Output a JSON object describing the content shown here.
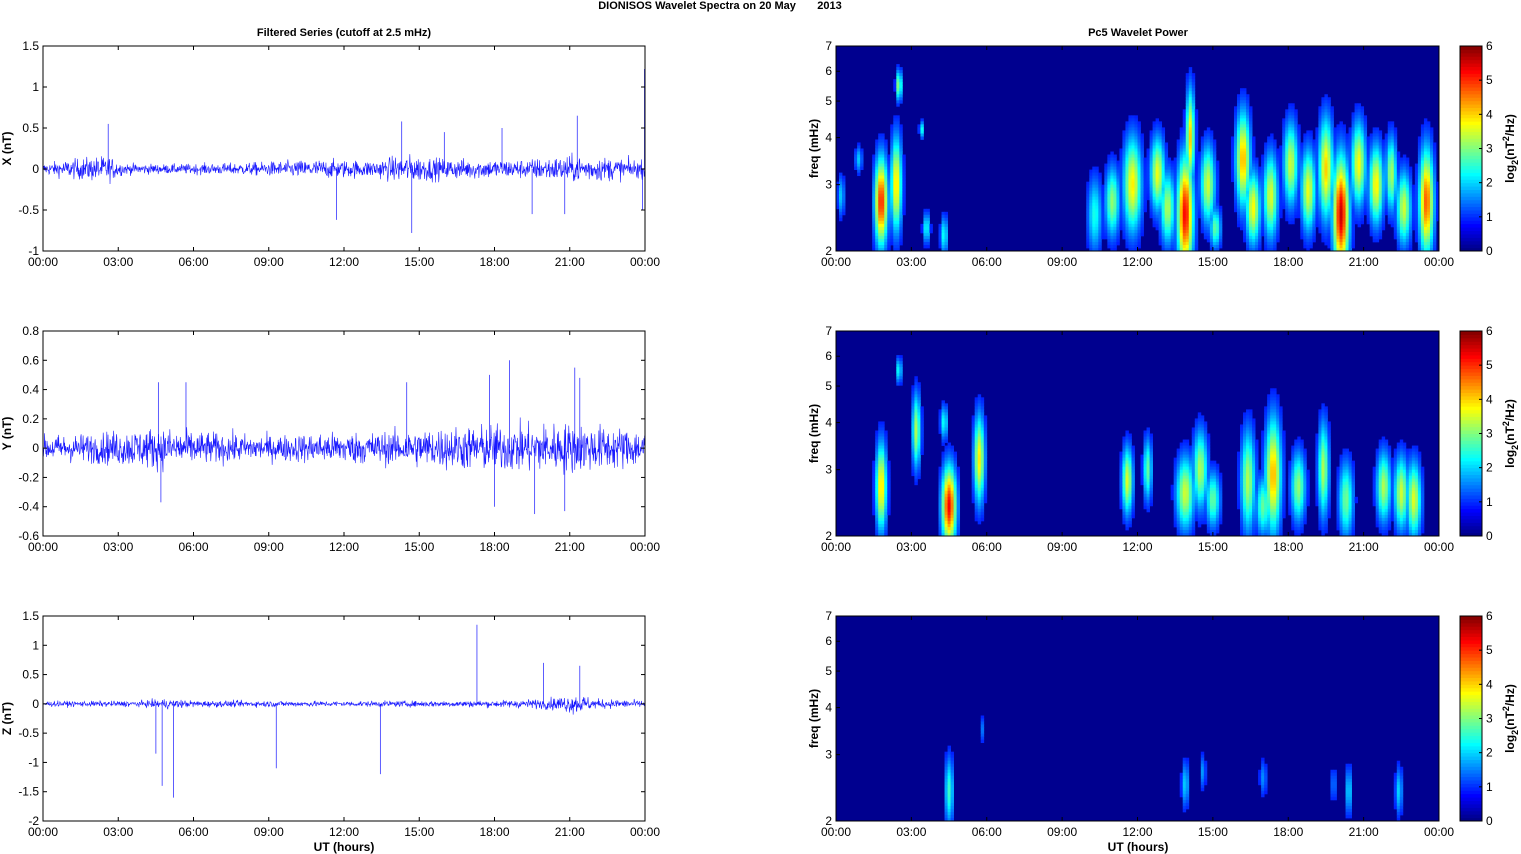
{
  "figure": {
    "title": "DIONISOS Wavelet Spectra on 20 May       2013",
    "left_title": "Filtered Series (cutoff at 2.5 mHz)",
    "right_title": "Pc5 Wavelet Power",
    "xlabel": "UT (hours)"
  },
  "colors": {
    "trace": "#0000ff",
    "spectrum_bg": "#00008f",
    "axis": "#000000"
  },
  "chart_data": [
    {
      "type": "line",
      "panel": "x-series",
      "ylabel": "X (nT)",
      "xlim": [
        0,
        24
      ],
      "ylim": [
        -1,
        1.5
      ],
      "xticks": [
        "00:00",
        "03:00",
        "06:00",
        "09:00",
        "12:00",
        "15:00",
        "18:00",
        "21:00",
        "00:00"
      ],
      "yticks": [
        "-1",
        "-0.5",
        "0",
        "0.5",
        "1",
        "1.5"
      ],
      "ytick_values": [
        -1,
        -0.5,
        0,
        0.5,
        1,
        1.5
      ],
      "series": [
        {
          "base_amplitude_envelope": [
            [
              0,
              0.12
            ],
            [
              1.8,
              0.25
            ],
            [
              2.6,
              0.28
            ],
            [
              3.2,
              0.12
            ],
            [
              5,
              0.1
            ],
            [
              8,
              0.13
            ],
            [
              11,
              0.2
            ],
            [
              13,
              0.18
            ],
            [
              14.5,
              0.3
            ],
            [
              16,
              0.22
            ],
            [
              19,
              0.2
            ],
            [
              21,
              0.28
            ],
            [
              22.5,
              0.25
            ],
            [
              24,
              0.18
            ]
          ],
          "spikes": [
            [
              2.6,
              0.55
            ],
            [
              11.7,
              -0.62
            ],
            [
              14.3,
              0.58
            ],
            [
              14.7,
              -0.78
            ],
            [
              16,
              0.45
            ],
            [
              18.3,
              0.5
            ],
            [
              19.5,
              -0.55
            ],
            [
              20.8,
              -0.55
            ],
            [
              21.3,
              0.65
            ],
            [
              23.9,
              -0.5
            ],
            [
              23.98,
              1.22
            ]
          ]
        }
      ]
    },
    {
      "type": "line",
      "panel": "y-series",
      "ylabel": "Y (nT)",
      "xlim": [
        0,
        24
      ],
      "ylim": [
        -0.6,
        0.8
      ],
      "xticks": [
        "00:00",
        "03:00",
        "06:00",
        "09:00",
        "12:00",
        "15:00",
        "18:00",
        "21:00",
        "00:00"
      ],
      "yticks": [
        "-0.6",
        "-0.4",
        "-0.2",
        "0",
        "0.2",
        "0.4",
        "0.6",
        "0.8"
      ],
      "ytick_values": [
        -0.6,
        -0.4,
        -0.2,
        0,
        0.2,
        0.4,
        0.6,
        0.8
      ],
      "series": [
        {
          "base_amplitude_envelope": [
            [
              0,
              0.15
            ],
            [
              2,
              0.18
            ],
            [
              4.5,
              0.25
            ],
            [
              6,
              0.2
            ],
            [
              9,
              0.15
            ],
            [
              11,
              0.18
            ],
            [
              14,
              0.2
            ],
            [
              16,
              0.25
            ],
            [
              18,
              0.28
            ],
            [
              21,
              0.3
            ],
            [
              24,
              0.22
            ]
          ],
          "spikes": [
            [
              4.6,
              0.45
            ],
            [
              5.7,
              0.45
            ],
            [
              4.7,
              -0.37
            ],
            [
              14.5,
              0.45
            ],
            [
              17.8,
              0.5
            ],
            [
              18.6,
              0.6
            ],
            [
              18,
              -0.4
            ],
            [
              19.6,
              -0.45
            ],
            [
              21.2,
              0.55
            ],
            [
              20.8,
              -0.43
            ],
            [
              21.4,
              0.48
            ]
          ]
        }
      ]
    },
    {
      "type": "line",
      "panel": "z-series",
      "ylabel": "Z (nT)",
      "xlim": [
        0,
        24
      ],
      "ylim": [
        -2,
        1.5
      ],
      "xticks": [
        "00:00",
        "03:00",
        "06:00",
        "09:00",
        "12:00",
        "15:00",
        "18:00",
        "21:00",
        "00:00"
      ],
      "yticks": [
        "-2",
        "-1.5",
        "-1",
        "-0.5",
        "0",
        "0.5",
        "1",
        "1.5"
      ],
      "ytick_values": [
        -2,
        -1.5,
        -1,
        -0.5,
        0,
        0.5,
        1,
        1.5
      ],
      "series": [
        {
          "base_amplitude_envelope": [
            [
              0,
              0.08
            ],
            [
              4,
              0.09
            ],
            [
              4.8,
              0.15
            ],
            [
              6,
              0.1
            ],
            [
              12,
              0.08
            ],
            [
              18,
              0.1
            ],
            [
              20,
              0.15
            ],
            [
              21.3,
              0.3
            ],
            [
              22,
              0.15
            ],
            [
              24,
              0.1
            ]
          ],
          "spikes": [
            [
              4.5,
              -0.85
            ],
            [
              4.75,
              -1.4
            ],
            [
              5.2,
              -1.6
            ],
            [
              9.3,
              -1.1
            ],
            [
              13.45,
              -1.2
            ],
            [
              17.3,
              1.35
            ],
            [
              19.95,
              0.7
            ],
            [
              21.4,
              0.65
            ]
          ]
        }
      ]
    },
    {
      "type": "heatmap",
      "panel": "x-spectrum",
      "ylabel": "freq (mHz)",
      "xlim": [
        0,
        24
      ],
      "ylim": [
        2,
        7
      ],
      "yscale": "log",
      "xticks": [
        "00:00",
        "03:00",
        "06:00",
        "09:00",
        "12:00",
        "15:00",
        "18:00",
        "21:00",
        "00:00"
      ],
      "yticks": [
        "2",
        "3",
        "4",
        "5",
        "6",
        "7"
      ],
      "ytick_values": [
        2,
        3,
        4,
        5,
        6,
        7
      ],
      "colorbar": {
        "label": "log2(nT2/Hz)",
        "range": [
          0,
          6
        ],
        "ticks": [
          "0",
          "1",
          "2",
          "3",
          "4",
          "5",
          "6"
        ]
      },
      "blobs": [
        [
          0.2,
          2.8,
          0.1,
          0.25,
          1.5
        ],
        [
          0.9,
          3.5,
          0.1,
          0.2,
          1.5
        ],
        [
          1.8,
          2.7,
          0.18,
          0.5,
          5
        ],
        [
          2.4,
          3.0,
          0.15,
          0.6,
          3.8
        ],
        [
          2.5,
          5.5,
          0.08,
          0.35,
          3
        ],
        [
          3.4,
          4.2,
          0.06,
          0.15,
          2
        ],
        [
          3.6,
          2.3,
          0.1,
          0.15,
          2
        ],
        [
          4.3,
          2.2,
          0.1,
          0.18,
          2
        ],
        [
          10.3,
          2.5,
          0.2,
          0.4,
          2
        ],
        [
          11,
          2.7,
          0.2,
          0.4,
          2.8
        ],
        [
          11.8,
          3.0,
          0.25,
          0.6,
          3.6
        ],
        [
          12.8,
          3.2,
          0.2,
          0.5,
          3.4
        ],
        [
          13.2,
          2.6,
          0.2,
          0.4,
          3
        ],
        [
          13.9,
          2.5,
          0.22,
          0.6,
          5.2
        ],
        [
          14.1,
          4.0,
          0.12,
          0.8,
          3.8
        ],
        [
          14.8,
          3.0,
          0.2,
          0.5,
          3.2
        ],
        [
          15.1,
          2.3,
          0.15,
          0.2,
          2.5
        ],
        [
          16.2,
          3.5,
          0.2,
          0.7,
          4
        ],
        [
          16.6,
          2.6,
          0.2,
          0.4,
          3.5
        ],
        [
          17.3,
          2.8,
          0.2,
          0.5,
          3.3
        ],
        [
          18.1,
          3.4,
          0.2,
          0.6,
          3.2
        ],
        [
          18.8,
          2.9,
          0.2,
          0.5,
          3.4
        ],
        [
          19.5,
          3.3,
          0.2,
          0.7,
          3.8
        ],
        [
          20.1,
          2.5,
          0.22,
          0.6,
          5.5
        ],
        [
          20.8,
          3.4,
          0.2,
          0.6,
          3.5
        ],
        [
          21.5,
          3.0,
          0.2,
          0.5,
          3.6
        ],
        [
          22.1,
          3.2,
          0.15,
          0.5,
          3
        ],
        [
          22.6,
          2.6,
          0.2,
          0.4,
          3.2
        ],
        [
          23.5,
          2.7,
          0.2,
          0.6,
          4.6
        ]
      ]
    },
    {
      "type": "heatmap",
      "panel": "y-spectrum",
      "ylabel": "freq (mHz)",
      "xlim": [
        0,
        24
      ],
      "ylim": [
        2,
        7
      ],
      "yscale": "log",
      "xticks": [
        "00:00",
        "03:00",
        "06:00",
        "09:00",
        "12:00",
        "15:00",
        "18:00",
        "21:00",
        "00:00"
      ],
      "yticks": [
        "2",
        "3",
        "4",
        "5",
        "6",
        "7"
      ],
      "ytick_values": [
        2,
        3,
        4,
        5,
        6,
        7
      ],
      "colorbar": {
        "label": "log2(nT2/Hz)",
        "range": [
          0,
          6
        ],
        "ticks": [
          "0",
          "1",
          "2",
          "3",
          "4",
          "5",
          "6"
        ]
      },
      "blobs": [
        [
          1.8,
          2.7,
          0.15,
          0.5,
          3.8
        ],
        [
          2.5,
          5.5,
          0.08,
          0.3,
          2
        ],
        [
          3.2,
          3.8,
          0.12,
          0.6,
          3
        ],
        [
          4.3,
          4.0,
          0.1,
          0.3,
          2
        ],
        [
          4.5,
          2.4,
          0.2,
          0.4,
          5.2
        ],
        [
          5.7,
          3.2,
          0.15,
          0.6,
          3.6
        ],
        [
          11.6,
          2.8,
          0.15,
          0.4,
          3.3
        ],
        [
          12.4,
          3.0,
          0.12,
          0.4,
          2.5
        ],
        [
          13.9,
          2.6,
          0.25,
          0.4,
          3.2
        ],
        [
          14.5,
          3.0,
          0.2,
          0.5,
          3
        ],
        [
          15.0,
          2.5,
          0.2,
          0.3,
          2.5
        ],
        [
          16.4,
          2.8,
          0.2,
          0.6,
          3
        ],
        [
          17.0,
          2.4,
          0.2,
          0.3,
          2.5
        ],
        [
          17.4,
          2.9,
          0.22,
          0.7,
          4
        ],
        [
          18.4,
          2.7,
          0.2,
          0.4,
          2.8
        ],
        [
          19.4,
          3.0,
          0.15,
          0.6,
          3
        ],
        [
          20.3,
          2.5,
          0.2,
          0.4,
          2.6
        ],
        [
          21.8,
          2.7,
          0.2,
          0.4,
          3
        ],
        [
          22.5,
          2.6,
          0.2,
          0.4,
          3.2
        ],
        [
          23.0,
          2.5,
          0.2,
          0.4,
          3.3
        ]
      ]
    },
    {
      "type": "heatmap",
      "panel": "z-spectrum",
      "ylabel": "freq (mHz)",
      "xlim": [
        0,
        24
      ],
      "ylim": [
        2,
        7
      ],
      "yscale": "log",
      "xticks": [
        "00:00",
        "03:00",
        "06:00",
        "09:00",
        "12:00",
        "15:00",
        "18:00",
        "21:00",
        "00:00"
      ],
      "yticks": [
        "2",
        "3",
        "4",
        "5",
        "6",
        "7"
      ],
      "ytick_values": [
        2,
        3,
        4,
        5,
        6,
        7
      ],
      "colorbar": {
        "label": "log2(nT2/Hz)",
        "range": [
          0,
          6
        ],
        "ticks": [
          "0",
          "1",
          "2",
          "3",
          "4",
          "5",
          "6"
        ]
      },
      "blobs": [
        [
          4.5,
          2.4,
          0.12,
          0.35,
          2.2
        ],
        [
          5.8,
          3.5,
          0.05,
          0.2,
          1
        ],
        [
          13.9,
          2.5,
          0.1,
          0.25,
          1.6
        ],
        [
          14.6,
          2.7,
          0.08,
          0.2,
          1.2
        ],
        [
          17.0,
          2.6,
          0.1,
          0.2,
          1.1
        ],
        [
          19.8,
          2.5,
          0.08,
          0.2,
          1
        ],
        [
          20.4,
          2.4,
          0.1,
          0.25,
          1.6
        ],
        [
          22.4,
          2.4,
          0.1,
          0.25,
          1.6
        ]
      ]
    }
  ]
}
